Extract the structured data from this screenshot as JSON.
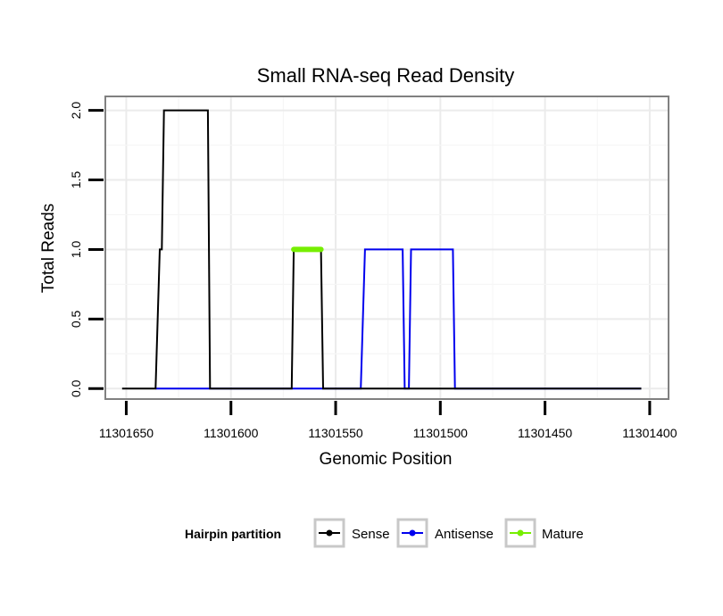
{
  "chart_data": {
    "type": "line",
    "title": "Small RNA-seq Read Density",
    "xlabel": "Genomic Position",
    "ylabel": "Total Reads",
    "xlim": [
      11301660,
      11301391
    ],
    "ylim": [
      -0.075,
      2.1
    ],
    "x_reversed": true,
    "x_ticks": [
      11301650,
      11301600,
      11301550,
      11301500,
      11301450,
      11301400
    ],
    "x_tick_labels": [
      "11301650",
      "11301600",
      "11301550",
      "11301500",
      "11301450",
      "11301400"
    ],
    "y_ticks": [
      0.0,
      0.5,
      1.0,
      1.5,
      2.0
    ],
    "y_tick_labels": [
      "0.0",
      "0.5",
      "1.0",
      "1.5",
      "2.0"
    ],
    "grid": true,
    "legend": {
      "title": "Hairpin partition",
      "position": "bottom",
      "entries": [
        "Sense",
        "Antisense",
        "Mature"
      ]
    },
    "series": [
      {
        "name": "Sense",
        "color": "#000000",
        "points": [
          [
            11301652,
            0
          ],
          [
            11301636,
            0
          ],
          [
            11301634,
            1
          ],
          [
            11301633,
            1
          ],
          [
            11301632,
            2
          ],
          [
            11301611,
            2
          ],
          [
            11301610,
            0
          ],
          [
            11301571,
            0
          ],
          [
            11301570,
            1
          ],
          [
            11301557,
            1
          ],
          [
            11301556,
            0
          ],
          [
            11301404,
            0
          ]
        ]
      },
      {
        "name": "Antisense",
        "color": "#0000ee",
        "points": [
          [
            11301636,
            0
          ],
          [
            11301611,
            0
          ],
          [
            11301571,
            0
          ],
          [
            11301538,
            0
          ],
          [
            11301536,
            1
          ],
          [
            11301518,
            1
          ],
          [
            11301517,
            0
          ],
          [
            11301515,
            0
          ],
          [
            11301514,
            1
          ],
          [
            11301494,
            1
          ],
          [
            11301493,
            0
          ],
          [
            11301404,
            0
          ]
        ]
      },
      {
        "name": "Mature",
        "color": "#76ee00",
        "points": [
          [
            11301570,
            1
          ],
          [
            11301557,
            1
          ]
        ]
      }
    ]
  }
}
